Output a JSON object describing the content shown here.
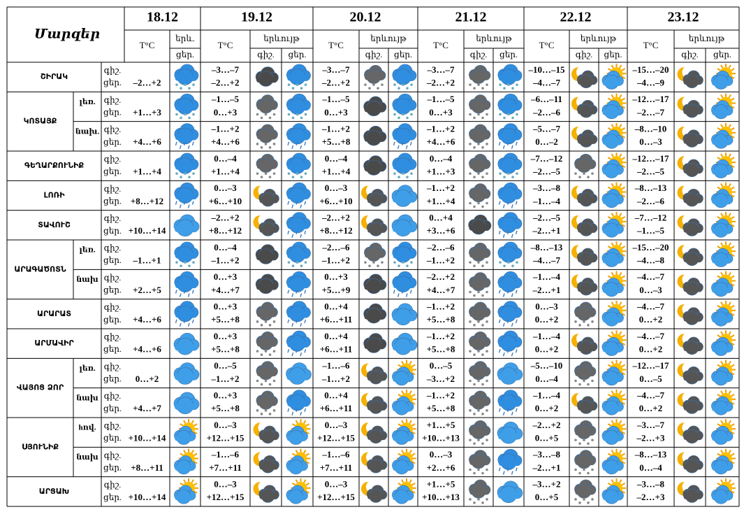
{
  "header": {
    "title": "Մարզեր",
    "dates": [
      "18.12",
      "19.12",
      "20.12",
      "21.12",
      "22.12",
      "23.12"
    ],
    "temp_label": "T°C",
    "phenomenon_short": "երև.",
    "phenomenon": "երևույթ",
    "night": "գիշ.",
    "day": "ցեր."
  },
  "regions": [
    {
      "name": "ՇԻՐԱԿ",
      "rows": [
        {
          "first": "–2…+2",
          "pairs": [
            [
              "–3…–7",
              "–2…+2"
            ],
            [
              "–3…–7",
              "–2…+2"
            ],
            [
              "–3…–7",
              "–2…+2"
            ],
            [
              "–10…–15",
              "–4…–7"
            ],
            [
              "–15…–20",
              "–4…–9"
            ]
          ]
        }
      ]
    },
    {
      "name": "ԿՈՏԱՅՔ",
      "rows": [
        {
          "sub": "լեռ.",
          "first": "+1…+3",
          "pairs": [
            [
              "–1…–5",
              "0…+3"
            ],
            [
              "–1…–5",
              "0…+3"
            ],
            [
              "–1…–5",
              "0…+3"
            ],
            [
              "–6…–11",
              "–2…–6"
            ],
            [
              "–12…–17",
              "–2…–7"
            ]
          ]
        },
        {
          "sub": "նախ.",
          "first": "+4…+6",
          "pairs": [
            [
              "–1…+2",
              "+4…+6"
            ],
            [
              "–1…+2",
              "+5…+8"
            ],
            [
              "–1…+2",
              "+4…+6"
            ],
            [
              "–5…–7",
              "0…–2"
            ],
            [
              "–8…–10",
              "0…–3"
            ]
          ]
        }
      ]
    },
    {
      "name": "ԳԵՂԱՐՔՈՒՆԻՔ",
      "rows": [
        {
          "first": "+1…+4",
          "pairs": [
            [
              "0…–4",
              "+1…+4"
            ],
            [
              "0…–4",
              "+1…+4"
            ],
            [
              "0…–4",
              "+1…+3"
            ],
            [
              "–7…–12",
              "–2…–5"
            ],
            [
              "–12…–17",
              "–2…–5"
            ]
          ]
        }
      ]
    },
    {
      "name": "ԼՈՌԻ",
      "rows": [
        {
          "first": "+8…+12",
          "pairs": [
            [
              "0…–3",
              "+6…+10"
            ],
            [
              "0…–3",
              "+6…+10"
            ],
            [
              "–1…+2",
              "+1…+4"
            ],
            [
              "–3…–8",
              "–1…–4"
            ],
            [
              "–8…–13",
              "–2…–6"
            ]
          ]
        }
      ]
    },
    {
      "name": "ՏԱՎՈՒՇ",
      "rows": [
        {
          "first": "+10…+14",
          "pairs": [
            [
              "–2…+2",
              "+8…+12"
            ],
            [
              "–2…+2",
              "+8…+12"
            ],
            [
              "0…+4",
              "+3…+6"
            ],
            [
              "–2…–5",
              "–2…+1"
            ],
            [
              "–7…–12",
              "–1…–5"
            ]
          ]
        }
      ]
    },
    {
      "name": "ԱՐԱԳԱԾՈՏՆ",
      "rows": [
        {
          "sub": "լեռ.",
          "first": "–1…+1",
          "pairs": [
            [
              "0…–4",
              "–1…+2"
            ],
            [
              "–2…–6",
              "–1…+2"
            ],
            [
              "–2…–6",
              "–1…+2"
            ],
            [
              "–8…–13",
              "–4…–7"
            ],
            [
              "–15…–20",
              "–4…–8"
            ]
          ]
        },
        {
          "sub": "նախ",
          "first": "+2…+5",
          "pairs": [
            [
              "0…+3",
              "+4…+7"
            ],
            [
              "0…+3",
              "+5…+9"
            ],
            [
              "–2…+2",
              "+4…+7"
            ],
            [
              "–1…–4",
              "–2…+1"
            ],
            [
              "–4…–7",
              "0…–3"
            ]
          ]
        }
      ]
    },
    {
      "name": "ԱՐԱՐԱՏ",
      "rows": [
        {
          "first": "+4…+6",
          "pairs": [
            [
              "0…+3",
              "+5…+8"
            ],
            [
              "0…+4",
              "+6…+11"
            ],
            [
              "–1…+2",
              "+5…+8"
            ],
            [
              "0…–3",
              "0…+2"
            ],
            [
              "–4…–7",
              "0…+2"
            ]
          ]
        }
      ]
    },
    {
      "name": "ԱՐՄԱՎԻՐ",
      "rows": [
        {
          "first": "+4…+6",
          "pairs": [
            [
              "0…+3",
              "+5…+8"
            ],
            [
              "0…+4",
              "+6…+11"
            ],
            [
              "–1…+2",
              "+5…+8"
            ],
            [
              "–1…–4",
              "0…+2"
            ],
            [
              "–4…–7",
              "0…+2"
            ]
          ]
        }
      ]
    },
    {
      "name": "ՎԱՅՈՑ ՁՈՐ",
      "rows": [
        {
          "sub": "լեռ.",
          "first": "0…+2",
          "pairs": [
            [
              "0…–5",
              "–1…+2"
            ],
            [
              "–1…–6",
              "–1…+2"
            ],
            [
              "0…–5",
              "–3…+2"
            ],
            [
              "–5…–10",
              "0…–4"
            ],
            [
              "–12…–17",
              "0…–5"
            ]
          ]
        },
        {
          "sub": "նախ",
          "first": "+4…+7",
          "pairs": [
            [
              "0…+3",
              "+5…+8"
            ],
            [
              "0…+4",
              "+6…+11"
            ],
            [
              "–1…+2",
              "+5…+8"
            ],
            [
              "–1…–4",
              "0…+2"
            ],
            [
              "–4…–7",
              "0…+2"
            ]
          ]
        }
      ]
    },
    {
      "name": "ՍՅՈՒՆԻՔ",
      "rows": [
        {
          "sub": "hով.",
          "first": "+10…+14",
          "pairs": [
            [
              "0…–3",
              "+12…+15"
            ],
            [
              "0…–3",
              "+12…+15"
            ],
            [
              "+1…+5",
              "+10…+13"
            ],
            [
              "–2…+2",
              "0…+5"
            ],
            [
              "–3…–7",
              "–2…+3"
            ]
          ]
        },
        {
          "sub": "նախ",
          "first": "+8…+11",
          "pairs": [
            [
              "–1…–6",
              "+7…+11"
            ],
            [
              "–1…–6",
              "+7…+11"
            ],
            [
              "0…–3",
              "+2…+6"
            ],
            [
              "–3…–8",
              "–2…+1"
            ],
            [
              "–8…–13",
              "0…–4"
            ]
          ]
        }
      ]
    },
    {
      "name": "ԱՐՑԱԽ",
      "rows": [
        {
          "first": "+10…+14",
          "pairs": [
            [
              "0…–3",
              "+12…+15"
            ],
            [
              "0…–3",
              "+12…+15"
            ],
            [
              "+1…+5",
              "+10…+13"
            ],
            [
              "–3…+2",
              "0…+5"
            ],
            [
              "–3…–8",
              "–2…+3"
            ]
          ]
        }
      ]
    }
  ]
}
